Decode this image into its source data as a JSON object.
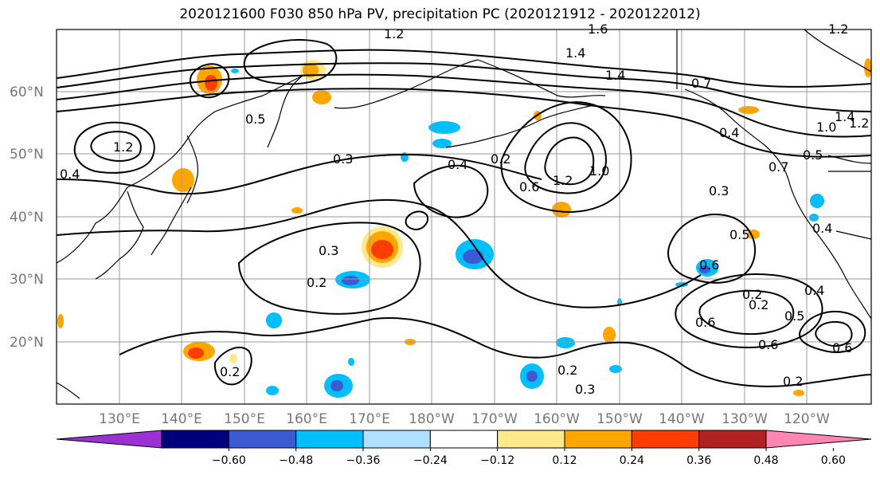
{
  "title": "2020121600 F030 850 hPa PV, precipitation PC (2020121912 - 2020122012)",
  "lat_labels": [
    "60°N",
    "50°N",
    "40°N",
    "30°N",
    "20°N"
  ],
  "lon_labels": [
    "130°E",
    "140°E",
    "150°E",
    "160°E",
    "170°E",
    "180°W",
    "170°W",
    "160°W",
    "150°W",
    "140°W",
    "130°W",
    "120°W"
  ],
  "contour_labels": [
    "1.2",
    "1.6",
    "1.4",
    "1.2",
    "1.4",
    "0.7",
    "1.0",
    "1.4",
    "1.2",
    "1.2",
    "0.5",
    "0.3",
    "0.4",
    "0.2",
    "0.6",
    "1.2",
    "1.0",
    "0.3",
    "0.4",
    "0.7",
    "0.5",
    "0.3",
    "0.2",
    "0.6",
    "0.2",
    "0.6",
    "0.2",
    "0.5",
    "0.6",
    "0.6",
    "0.4",
    "0.2",
    "0.2",
    "0.2",
    "0.3",
    "0.4",
    "0.5",
    "0.4"
  ],
  "colorbar": {
    "ticks": [
      "−0.60",
      "−0.48",
      "−0.36",
      "−0.24",
      "−0.12",
      "0.12",
      "0.24",
      "0.36",
      "0.48",
      "0.60"
    ],
    "colors": [
      "#9b30d4",
      "#00007f",
      "#3b5bd2",
      "#00bfff",
      "#b0e0ff",
      "#ffffff",
      "#ffe98a",
      "#ffa500",
      "#ff3d00",
      "#b22222",
      "#ff86b0"
    ]
  }
}
